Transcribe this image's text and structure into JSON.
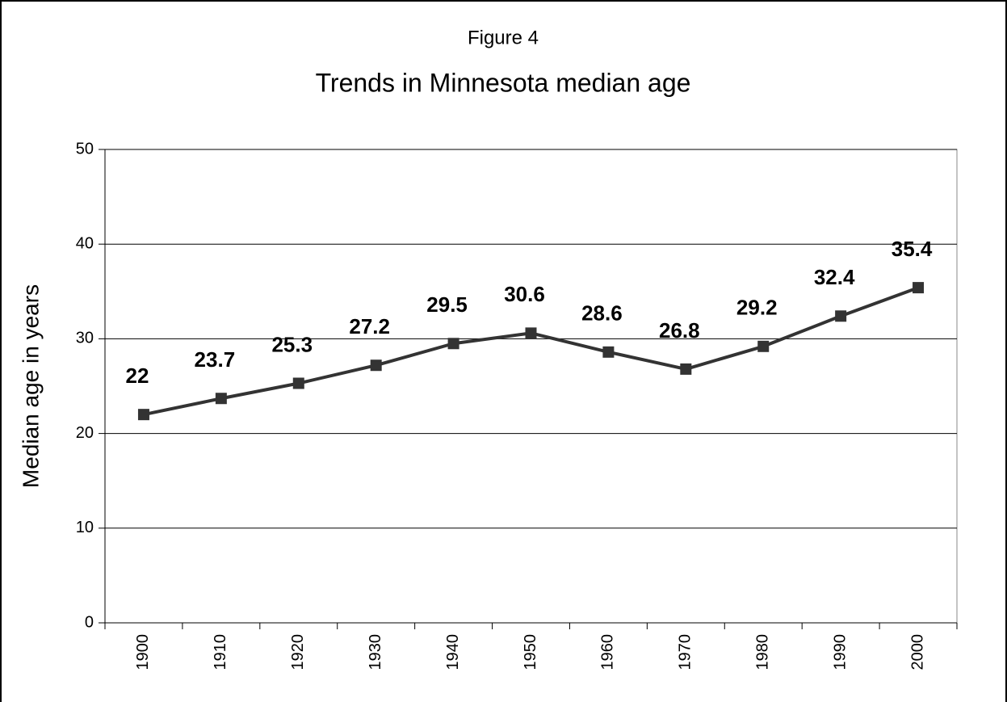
{
  "chart_data": {
    "type": "line",
    "title": "Figure 4",
    "subtitle": "Trends in Minnesota median age",
    "y_label": "Median age in years",
    "categories": [
      "1900",
      "1910",
      "1920",
      "1930",
      "1940",
      "1950",
      "1960",
      "1970",
      "1980",
      "1990",
      "2000"
    ],
    "series": [
      {
        "name": "Median age",
        "color": "#333333",
        "values": [
          22,
          23.7,
          25.3,
          27.2,
          29.5,
          30.6,
          28.6,
          26.8,
          29.2,
          32.4,
          35.4
        ]
      }
    ],
    "ylim": [
      0,
      50
    ],
    "yticks": [
      0,
      10,
      20,
      30,
      40,
      50
    ],
    "grid": true
  }
}
